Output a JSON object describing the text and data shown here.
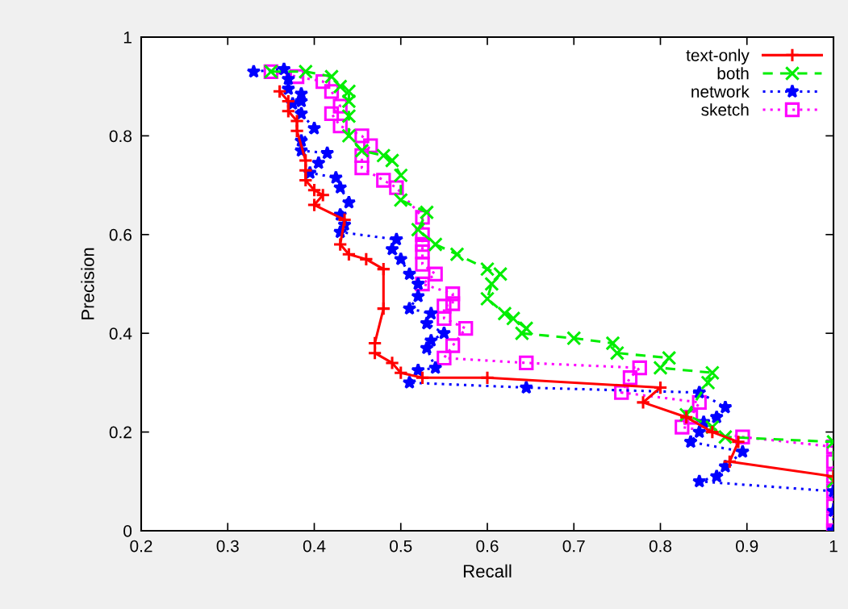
{
  "chart_data": {
    "type": "line",
    "xlabel": "Recall",
    "ylabel": "Precision",
    "xlim": [
      0.2,
      1
    ],
    "ylim": [
      0,
      1
    ],
    "xticks": [
      0.2,
      0.3,
      0.4,
      0.5,
      0.6,
      0.7,
      0.8,
      0.9,
      1
    ],
    "yticks": [
      0,
      0.2,
      0.4,
      0.6,
      0.8,
      1
    ],
    "grid": false,
    "legend": "top right",
    "series": [
      {
        "name": "text-only",
        "color": "#ff0000",
        "marker": "plus",
        "line_style": "solid",
        "x": [
          0.36,
          0.37,
          0.37,
          0.38,
          0.38,
          0.39,
          0.39,
          0.39,
          0.4,
          0.41,
          0.4,
          0.435,
          0.43,
          0.44,
          0.46,
          0.48,
          0.48,
          0.47,
          0.47,
          0.49,
          0.5,
          0.525,
          0.6,
          0.8,
          0.78,
          0.83,
          0.86,
          0.89,
          0.88,
          1.0
        ],
        "values": [
          0.89,
          0.87,
          0.85,
          0.83,
          0.81,
          0.75,
          0.73,
          0.71,
          0.69,
          0.68,
          0.66,
          0.63,
          0.58,
          0.56,
          0.55,
          0.53,
          0.45,
          0.38,
          0.36,
          0.34,
          0.32,
          0.31,
          0.31,
          0.29,
          0.26,
          0.23,
          0.2,
          0.18,
          0.14,
          0.11
        ]
      },
      {
        "name": "both",
        "color": "#00ee00",
        "marker": "cross",
        "line_style": "dashed",
        "x": [
          0.35,
          0.39,
          0.42,
          0.43,
          0.44,
          0.44,
          0.44,
          0.44,
          0.455,
          0.48,
          0.49,
          0.5,
          0.5,
          0.53,
          0.52,
          0.54,
          0.565,
          0.6,
          0.615,
          0.605,
          0.6,
          0.62,
          0.63,
          0.645,
          0.64,
          0.7,
          0.745,
          0.75,
          0.81,
          0.8,
          0.86,
          0.855,
          0.83,
          0.86,
          0.875,
          1.0,
          1.0
        ],
        "values": [
          0.93,
          0.93,
          0.92,
          0.9,
          0.89,
          0.87,
          0.84,
          0.8,
          0.77,
          0.76,
          0.75,
          0.72,
          0.67,
          0.645,
          0.61,
          0.58,
          0.56,
          0.53,
          0.52,
          0.5,
          0.47,
          0.44,
          0.43,
          0.41,
          0.4,
          0.39,
          0.38,
          0.36,
          0.35,
          0.33,
          0.32,
          0.3,
          0.235,
          0.21,
          0.19,
          0.18,
          0.1
        ]
      },
      {
        "name": "network",
        "color": "#0000ff",
        "marker": "star",
        "line_style": "dotted",
        "x": [
          0.33,
          0.365,
          0.37,
          0.37,
          0.385,
          0.385,
          0.375,
          0.385,
          0.4,
          0.385,
          0.385,
          0.415,
          0.405,
          0.395,
          0.425,
          0.43,
          0.44,
          0.43,
          0.435,
          0.43,
          0.495,
          0.49,
          0.5,
          0.51,
          0.52,
          0.52,
          0.51,
          0.535,
          0.53,
          0.55,
          0.535,
          0.53,
          0.54,
          0.52,
          0.51,
          0.645,
          0.845,
          0.875,
          0.865,
          0.85,
          0.845,
          0.835,
          0.895,
          0.875,
          0.865,
          0.845,
          1.0,
          1.0,
          1.0
        ],
        "values": [
          0.93,
          0.935,
          0.915,
          0.895,
          0.885,
          0.87,
          0.865,
          0.845,
          0.815,
          0.79,
          0.77,
          0.765,
          0.745,
          0.725,
          0.715,
          0.695,
          0.665,
          0.64,
          0.62,
          0.605,
          0.59,
          0.57,
          0.55,
          0.52,
          0.5,
          0.475,
          0.45,
          0.44,
          0.42,
          0.4,
          0.385,
          0.37,
          0.33,
          0.325,
          0.3,
          0.29,
          0.28,
          0.25,
          0.23,
          0.22,
          0.2,
          0.18,
          0.16,
          0.13,
          0.11,
          0.1,
          0.08,
          0.04,
          0.0
        ]
      },
      {
        "name": "sketch",
        "color": "#ff00ff",
        "marker": "square",
        "line_style": "dotted",
        "x": [
          0.35,
          0.38,
          0.41,
          0.42,
          0.43,
          0.42,
          0.43,
          0.455,
          0.465,
          0.455,
          0.455,
          0.48,
          0.495,
          0.525,
          0.525,
          0.525,
          0.525,
          0.525,
          0.54,
          0.525,
          0.56,
          0.56,
          0.55,
          0.55,
          0.575,
          0.56,
          0.55,
          0.645,
          0.776,
          0.765,
          0.755,
          0.845,
          0.835,
          0.825,
          0.895,
          1.0,
          1.0,
          1.0,
          1.0,
          1.0,
          1.0,
          1.0
        ],
        "values": [
          0.93,
          0.92,
          0.91,
          0.89,
          0.86,
          0.845,
          0.82,
          0.8,
          0.78,
          0.76,
          0.735,
          0.71,
          0.695,
          0.635,
          0.6,
          0.58,
          0.565,
          0.54,
          0.52,
          0.5,
          0.48,
          0.46,
          0.455,
          0.43,
          0.41,
          0.375,
          0.35,
          0.34,
          0.33,
          0.31,
          0.28,
          0.26,
          0.23,
          0.21,
          0.19,
          0.17,
          0.14,
          0.11,
          0.08,
          0.05,
          0.02,
          0.0
        ]
      }
    ]
  }
}
